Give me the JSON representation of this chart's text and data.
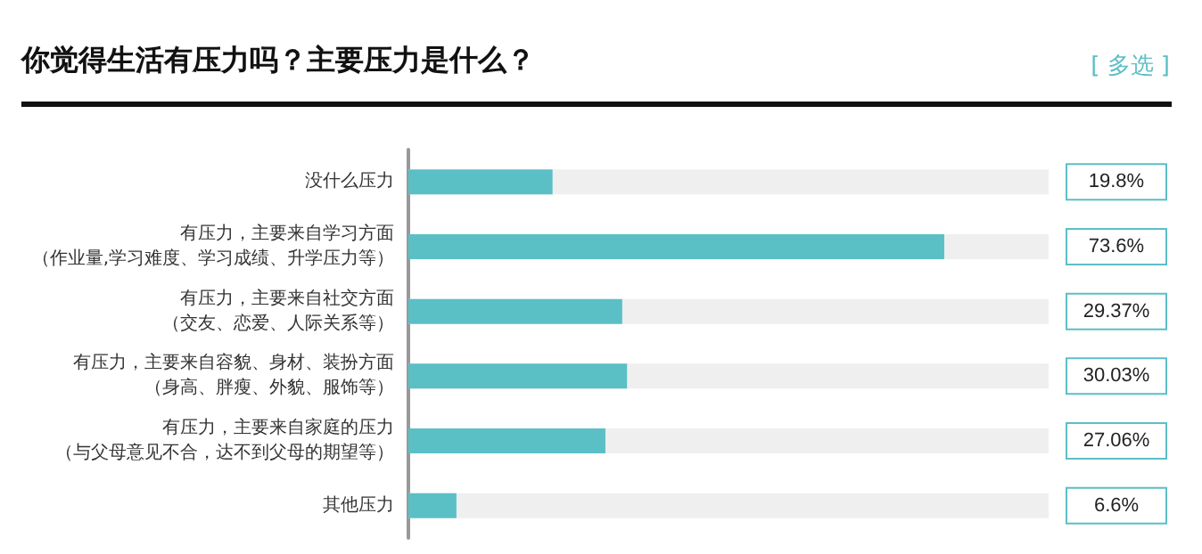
{
  "chart_data": {
    "type": "bar",
    "orientation": "horizontal",
    "title": "你觉得生活有压力吗？主要压力是什么？",
    "annotations": [
      "[ 多选 ]"
    ],
    "categories": [
      "没什么压力",
      "有压力，主要来自学习方面（作业量,学习难度、学习成绩、升学压力等）",
      "有压力，主要来自社交方面（交友、恋爱、人际关系等）",
      "有压力，主要来自容貌、身材、装扮方面（身高、胖瘦、外貌、服饰等）",
      "有压力，主要来自家庭的压力（与父母意见不合，达不到父母的期望等）",
      "其他压力"
    ],
    "values": [
      19.8,
      73.6,
      29.37,
      30.03,
      27.06,
      6.6
    ],
    "value_labels": [
      "19.8%",
      "73.6%",
      "29.37%",
      "30.03%",
      "27.06%",
      "6.6%"
    ],
    "color": "#5bbfc6"
  }
}
